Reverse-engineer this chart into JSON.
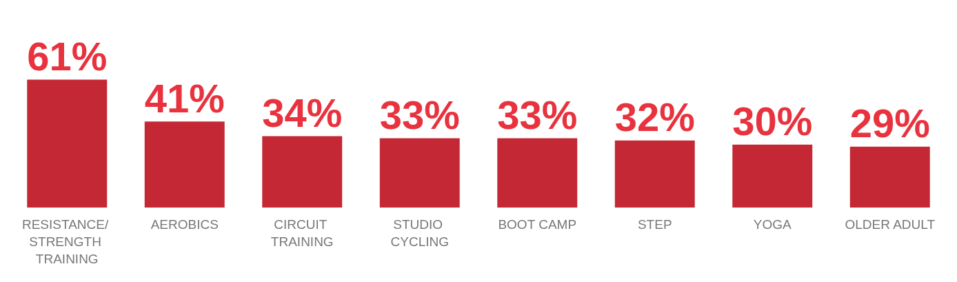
{
  "chart_data": {
    "type": "bar",
    "categories": [
      "RESISTANCE/ STRENGTH TRAINING",
      "AEROBICS",
      "CIRCUIT TRAINING",
      "STUDIO CYCLING",
      "BOOT CAMP",
      "STEP",
      "YOGA",
      "OLDER ADULT"
    ],
    "values": [
      61,
      41,
      34,
      33,
      33,
      32,
      30,
      29
    ],
    "value_labels": [
      "61%",
      "41%",
      "34%",
      "33%",
      "33%",
      "32%",
      "30%",
      "29%"
    ],
    "color": "#c42834"
  }
}
